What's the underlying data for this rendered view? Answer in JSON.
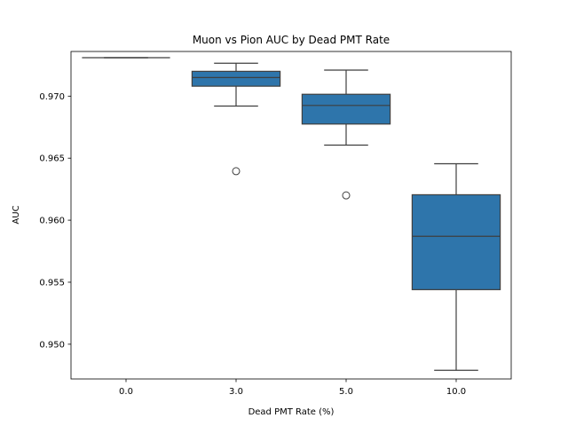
{
  "chart_data": {
    "type": "box",
    "title": "Muon vs Pion AUC by Dead PMT Rate",
    "xlabel": "Dead PMT Rate (%)",
    "ylabel": "AUC",
    "categories": [
      "0.0",
      "3.0",
      "5.0",
      "10.0"
    ],
    "ylim": [
      0.9472,
      0.9736
    ],
    "yticks": [
      0.95,
      0.955,
      0.96,
      0.965,
      0.97
    ],
    "ytick_labels": [
      "0.950",
      "0.955",
      "0.960",
      "0.965",
      "0.970"
    ],
    "grid": false,
    "box_color": "#2e75ab",
    "boxes": [
      {
        "category": "0.0",
        "whislo": 0.9731,
        "q1": 0.9731,
        "med": 0.9731,
        "q3": 0.9731,
        "whishi": 0.9731,
        "fliers": []
      },
      {
        "category": "3.0",
        "whislo": 0.9692,
        "q1": 0.9708,
        "med": 0.9715,
        "q3": 0.972,
        "whishi": 0.97265,
        "fliers": [
          0.96395
        ]
      },
      {
        "category": "5.0",
        "whislo": 0.96605,
        "q1": 0.96775,
        "med": 0.96925,
        "q3": 0.97015,
        "whishi": 0.9721,
        "fliers": [
          0.962
        ]
      },
      {
        "category": "10.0",
        "whislo": 0.9479,
        "q1": 0.9544,
        "med": 0.9587,
        "q3": 0.96205,
        "whishi": 0.96455,
        "fliers": []
      }
    ]
  }
}
